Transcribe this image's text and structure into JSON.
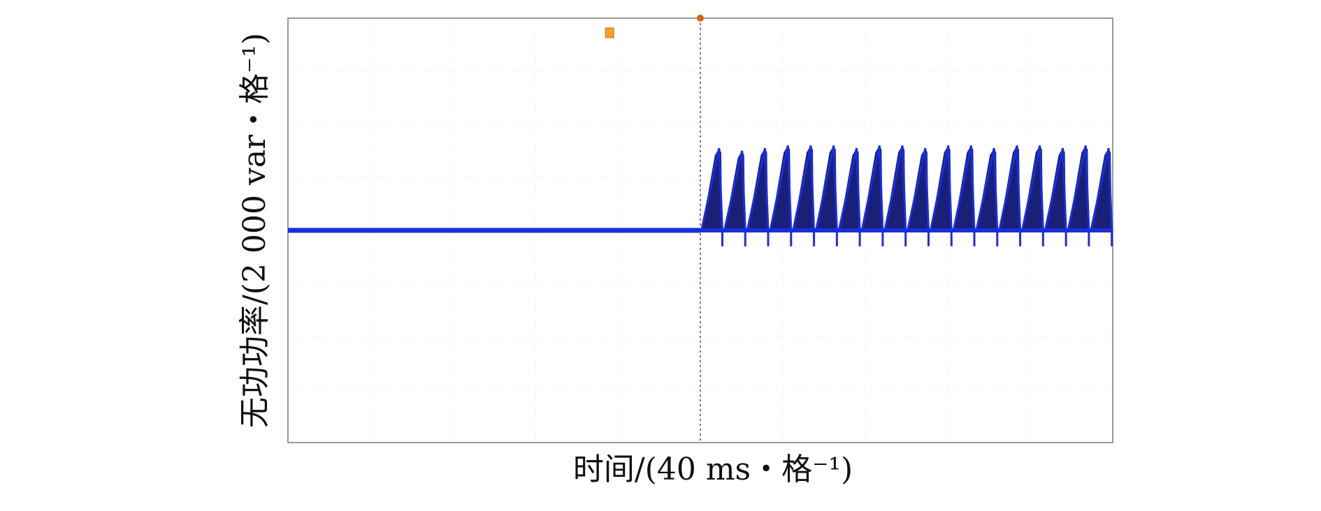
{
  "chart_data": {
    "type": "line",
    "title": "",
    "ylabel": "无功功率/(2 000 var・格⁻¹)",
    "xlabel": "时间/(40 ms・格⁻¹)",
    "xlim": [
      0,
      10
    ],
    "ylim": [
      -4,
      4
    ],
    "grid": true,
    "divisions": {
      "x": 10,
      "y": 8
    },
    "series": [
      {
        "color": "#1a2fd6",
        "baseline": 0,
        "step_at": 5.0,
        "pulse_count": 18,
        "pulse_peak": 1.6,
        "pulse_peak_values": [
          1.55,
          1.5,
          1.55,
          1.6,
          1.6,
          1.6,
          1.55,
          1.6,
          1.6,
          1.55,
          1.6,
          1.6,
          1.55,
          1.6,
          1.6,
          1.55,
          1.6,
          1.55
        ],
        "dip": -0.3
      }
    ],
    "trigger_marker_x": 5.0,
    "reference_marker_x": 3.9,
    "marker_colors": {
      "trigger": "#e06010",
      "reference": "#f0a030"
    }
  }
}
